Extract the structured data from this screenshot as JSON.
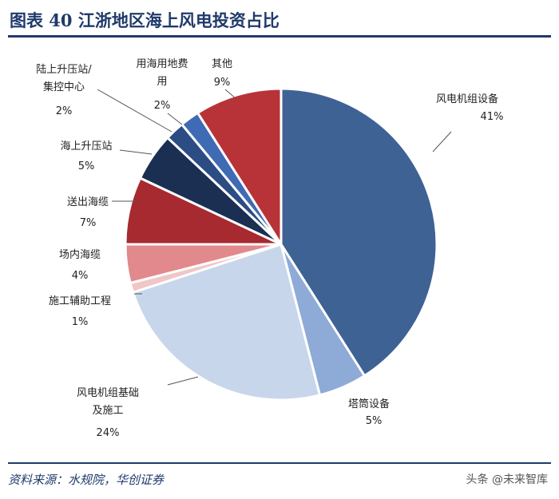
{
  "title": "图表 40   江浙地区海上风电投资占比",
  "source": "资料来源：水规院，华创证券",
  "watermark": "头条 @未来智库",
  "chart_data": {
    "type": "pie",
    "slices": [
      {
        "name": "风电机组设备",
        "value": 41,
        "label": "41%",
        "color": "#3f6295"
      },
      {
        "name": "塔筒设备",
        "value": 5,
        "label": "5%",
        "color": "#8eaad6"
      },
      {
        "name": "风电机组基础及施工",
        "value": 24,
        "label": "24%",
        "color": "#c8d6ec"
      },
      {
        "name": "施工辅助工程",
        "value": 1,
        "label": "1%",
        "color": "#f1c6c6"
      },
      {
        "name": "场内海缆",
        "value": 4,
        "label": "4%",
        "color": "#e1898c"
      },
      {
        "name": "送出海缆",
        "value": 7,
        "label": "7%",
        "color": "#a62a30"
      },
      {
        "name": "海上升压站",
        "value": 5,
        "label": "5%",
        "color": "#1a2f52"
      },
      {
        "name": "陆上升压站/集控中心",
        "value": 2,
        "label": "2%",
        "color": "#2c4c84"
      },
      {
        "name": "用海用地费用",
        "value": 2,
        "label": "2%",
        "color": "#3f6ab4"
      },
      {
        "name": "其他",
        "value": 9,
        "label": "9%",
        "color": "#b83338"
      }
    ]
  }
}
